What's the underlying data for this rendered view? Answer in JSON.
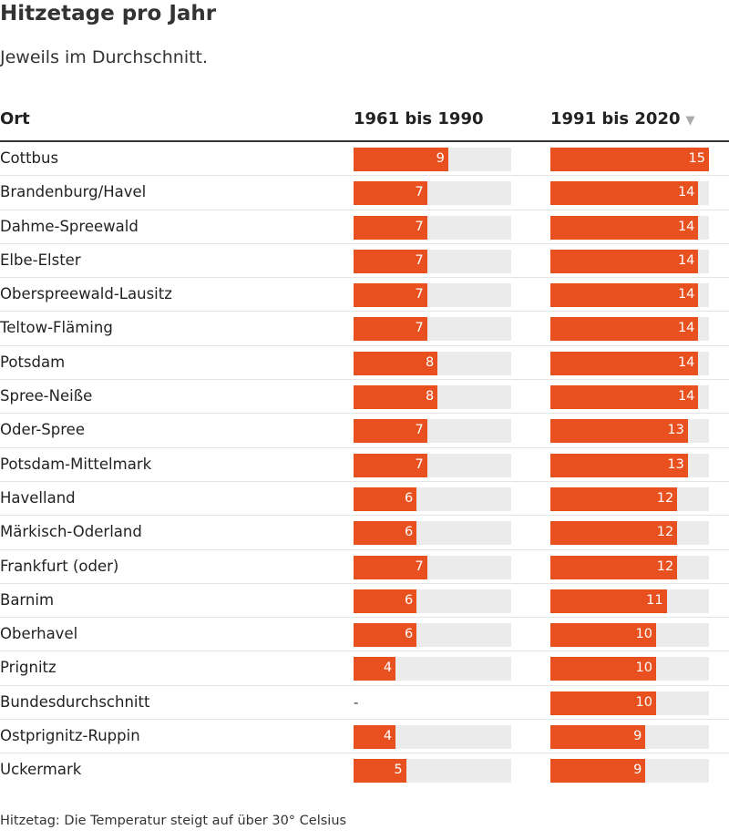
{
  "title": "Hitzetage pro Jahr",
  "subtitle": "Jeweils im Durchschnitt.",
  "footnote": "Hitzetag: Die Temperatur steigt auf über 30° Celsius",
  "colors": {
    "bar": "#e8501f",
    "track": "#ebebeb",
    "header_rule": "#333333"
  },
  "table": {
    "columns": [
      "Ort",
      "1961 bis 1990",
      "1991 bis 2020"
    ],
    "sorted_column": "1991 bis 2020",
    "sort_icon": "triangle-down-icon",
    "missing_label": "-"
  },
  "chart_data": {
    "type": "table",
    "title": "Hitzetage pro Jahr",
    "subtitle": "Jeweils im Durchschnitt.",
    "max_value": 15,
    "columns": [
      "1961 bis 1990",
      "1991 bis 2020"
    ],
    "rows": [
      {
        "ort": "Cottbus",
        "v1": 9,
        "v2": 15
      },
      {
        "ort": "Brandenburg/Havel",
        "v1": 7,
        "v2": 14
      },
      {
        "ort": "Dahme-Spreewald",
        "v1": 7,
        "v2": 14
      },
      {
        "ort": "Elbe-Elster",
        "v1": 7,
        "v2": 14
      },
      {
        "ort": "Oberspreewald-Lausitz",
        "v1": 7,
        "v2": 14
      },
      {
        "ort": "Teltow-Fläming",
        "v1": 7,
        "v2": 14
      },
      {
        "ort": "Potsdam",
        "v1": 8,
        "v2": 14
      },
      {
        "ort": "Spree-Neiße",
        "v1": 8,
        "v2": 14
      },
      {
        "ort": "Oder-Spree",
        "v1": 7,
        "v2": 13
      },
      {
        "ort": "Potsdam-Mittelmark",
        "v1": 7,
        "v2": 13
      },
      {
        "ort": "Havelland",
        "v1": 6,
        "v2": 12
      },
      {
        "ort": "Märkisch-Oderland",
        "v1": 6,
        "v2": 12
      },
      {
        "ort": "Frankfurt (oder)",
        "v1": 7,
        "v2": 12
      },
      {
        "ort": "Barnim",
        "v1": 6,
        "v2": 11
      },
      {
        "ort": "Oberhavel",
        "v1": 6,
        "v2": 10
      },
      {
        "ort": "Prignitz",
        "v1": 4,
        "v2": 10
      },
      {
        "ort": "Bundesdurchschnitt",
        "v1": null,
        "v2": 10
      },
      {
        "ort": "Ostprignitz-Ruppin",
        "v1": 4,
        "v2": 9
      },
      {
        "ort": "Uckermark",
        "v1": 5,
        "v2": 9
      }
    ]
  }
}
